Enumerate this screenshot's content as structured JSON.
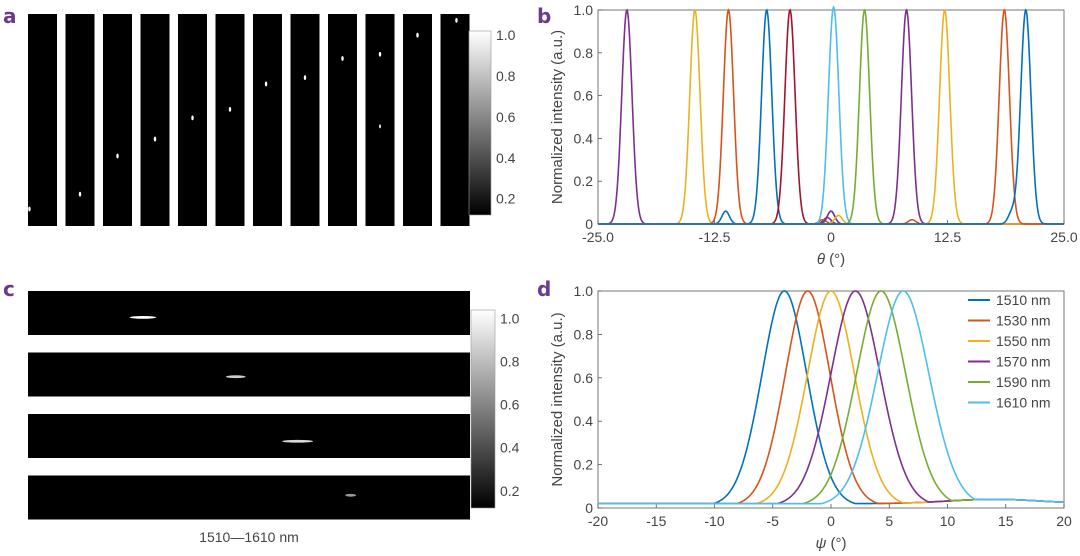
{
  "panels": {
    "a": {
      "letter": "a",
      "colorbar_ticks": [
        "1.0",
        "0.8",
        "0.6",
        "0.4",
        "0.2"
      ],
      "colorbar_values": [
        1.0,
        0.8,
        0.6,
        0.4,
        0.2
      ],
      "strip_count": 12,
      "spot_fractions": [
        [
          0.05,
          0.92
        ],
        [
          0.5,
          0.85
        ],
        [
          0.5,
          0.67
        ],
        [
          0.5,
          0.59
        ],
        [
          0.5,
          0.49
        ],
        [
          0.5,
          0.45
        ],
        [
          0.45,
          0.33
        ],
        [
          0.5,
          0.3
        ],
        [
          0.5,
          0.21
        ],
        [
          0.5,
          0.19
        ],
        [
          0.5,
          0.1
        ],
        [
          0.55,
          0.03
        ]
      ],
      "extra_spots": [
        [
          9,
          0.5,
          0.53
        ]
      ]
    },
    "c": {
      "letter": "c",
      "caption": "1510—1610 nm",
      "colorbar_ticks": [
        "1.0",
        "0.8",
        "0.6",
        "0.4",
        "0.2"
      ],
      "colorbar_values": [
        1.0,
        0.8,
        0.6,
        0.4,
        0.2
      ],
      "strip_count": 4,
      "streaks": [
        [
          0.26,
          0.6,
          0.06,
          1.0
        ],
        [
          0.47,
          0.55,
          0.045,
          0.8
        ],
        [
          0.61,
          0.62,
          0.07,
          0.85
        ],
        [
          0.73,
          0.45,
          0.025,
          0.6
        ]
      ]
    }
  },
  "chart_data": [
    {
      "panel": "b",
      "letter": "b",
      "type": "line",
      "xlabel_symbol": "θ",
      "xlabel_unit": " (°)",
      "ylabel": "Normalized intensity (a.u.)",
      "xlim": [
        -25.0,
        25.0
      ],
      "ylim": [
        0,
        1.0
      ],
      "xticks": [
        "-25.0",
        "-12.5",
        "0",
        "12.5",
        "25.0"
      ],
      "xtick_values": [
        -25.0,
        -12.5,
        0,
        12.5,
        25.0
      ],
      "yticks": [
        "0",
        "0.2",
        "0.4",
        "0.6",
        "0.8",
        "1.0"
      ],
      "ytick_values": [
        0,
        0.2,
        0.4,
        0.6,
        0.8,
        1.0
      ],
      "peak_sigma": 0.55,
      "peaks": [
        {
          "center": -21.9,
          "color": "#7e2f8e",
          "side": [
            [
              -0.4,
              0.03
            ]
          ]
        },
        {
          "center": -14.6,
          "color": "#edb120",
          "side": []
        },
        {
          "center": -11.0,
          "color": "#d95319",
          "side": [
            [
              -0.9,
              0.02
            ]
          ]
        },
        {
          "center": -6.9,
          "color": "#0072bd",
          "side": [
            [
              -11.3,
              0.06
            ]
          ]
        },
        {
          "center": -4.4,
          "color": "#a2142f",
          "side": []
        },
        {
          "center": 0.3,
          "color": "#4dbeee",
          "side": [
            [
              -0.3,
              0.04
            ]
          ]
        },
        {
          "center": 3.6,
          "color": "#77ac30",
          "side": [
            [
              0.0,
              0.06
            ]
          ]
        },
        {
          "center": 8.1,
          "color": "#7e2f8e",
          "side": [
            [
              0.0,
              0.06
            ]
          ]
        },
        {
          "center": 12.2,
          "color": "#edb120",
          "side": [
            [
              0.8,
              0.04
            ]
          ]
        },
        {
          "center": 18.6,
          "color": "#d95319",
          "side": [
            [
              8.7,
              0.02
            ]
          ]
        },
        {
          "center": 20.9,
          "color": "#0072bd",
          "side": [
            [
              19.4,
              0.05
            ]
          ]
        }
      ]
    },
    {
      "panel": "d",
      "letter": "d",
      "type": "line",
      "xlabel_symbol": "ψ",
      "xlabel_unit": " (°)",
      "ylabel": "Normalized intensity (a.u.)",
      "xlim": [
        -20,
        20
      ],
      "ylim": [
        0,
        1.0
      ],
      "xticks": [
        "-20",
        "-15",
        "-10",
        "-5",
        "0",
        "5",
        "10",
        "15",
        "20"
      ],
      "xtick_values": [
        -20,
        -15,
        -10,
        -5,
        0,
        5,
        10,
        15,
        20
      ],
      "yticks": [
        "0",
        "0.2",
        "0.4",
        "0.6",
        "0.8",
        "1.0"
      ],
      "ytick_values": [
        0,
        0.2,
        0.4,
        0.6,
        0.8,
        1.0
      ],
      "legend_position": "top-right",
      "series": [
        {
          "name": "1510 nm",
          "center": -4.0,
          "width": 2.0,
          "color": "#0072bd"
        },
        {
          "name": "1530 nm",
          "center": -2.0,
          "width": 2.0,
          "color": "#d95319"
        },
        {
          "name": "1550 nm",
          "center": 0.0,
          "width": 2.1,
          "color": "#edb120"
        },
        {
          "name": "1570 nm",
          "center": 2.1,
          "width": 2.2,
          "color": "#7e2f8e"
        },
        {
          "name": "1590 nm",
          "center": 4.3,
          "width": 2.2,
          "color": "#77ac30"
        },
        {
          "name": "1610 nm",
          "center": 6.2,
          "width": 2.3,
          "color": "#4dbeee"
        }
      ]
    }
  ]
}
